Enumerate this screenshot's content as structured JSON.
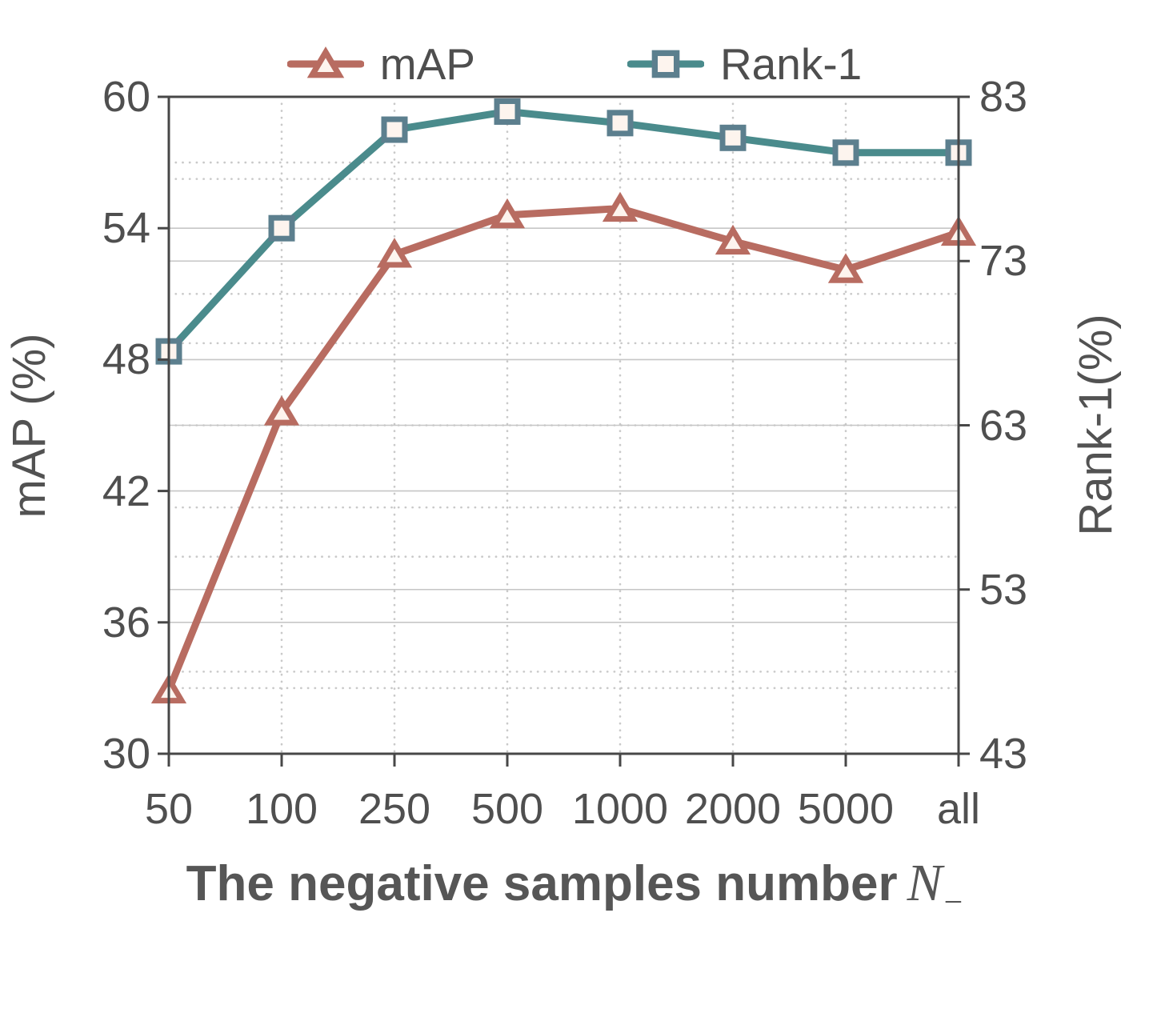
{
  "chart_data": {
    "type": "line",
    "categories": [
      "50",
      "100",
      "250",
      "500",
      "1000",
      "2000",
      "5000",
      "all"
    ],
    "series": [
      {
        "name": "mAP",
        "axis": "left",
        "marker": "triangle",
        "color": "#b86c61",
        "marker_edge": "#b86c61",
        "marker_fill": "#fdf4ee",
        "values": [
          32.9,
          45.6,
          52.8,
          54.6,
          54.9,
          53.4,
          52.1,
          53.8
        ]
      },
      {
        "name": "Rank-1",
        "axis": "right",
        "marker": "square",
        "color": "#4a8b8c",
        "marker_edge": "#5c7f8e",
        "marker_fill": "#fdf4ee",
        "values": [
          67.5,
          75.0,
          81.0,
          82.1,
          81.4,
          80.5,
          79.6,
          79.6
        ]
      }
    ],
    "left_axis": {
      "label": "mAP (%)",
      "min": 30,
      "max": 60,
      "ticks": [
        30,
        36,
        42,
        48,
        54,
        60
      ],
      "minor_ticks": [
        33,
        39,
        45,
        51,
        57
      ]
    },
    "right_axis": {
      "label": "Rank-1(%)",
      "min": 43,
      "max": 83,
      "ticks": [
        43,
        53,
        63,
        73,
        83
      ],
      "minor_ticks": [
        48,
        58,
        68,
        78
      ]
    },
    "xlabel": {
      "prefix": "The negative samples number",
      "math": "N",
      "sub": "−"
    },
    "legend": {
      "position": "top",
      "items": [
        "mAP",
        "Rank-1"
      ]
    },
    "grid": {
      "major_style": "solid",
      "minor_style": "dotted",
      "vertical_style": "dotted"
    },
    "style": {
      "spine_color": "#474747",
      "grid_major_color": "#c6c6c6",
      "grid_minor_color": "#c9c9c9",
      "tick_text_color": "#4f4f4f",
      "background": "#ffffff"
    }
  }
}
